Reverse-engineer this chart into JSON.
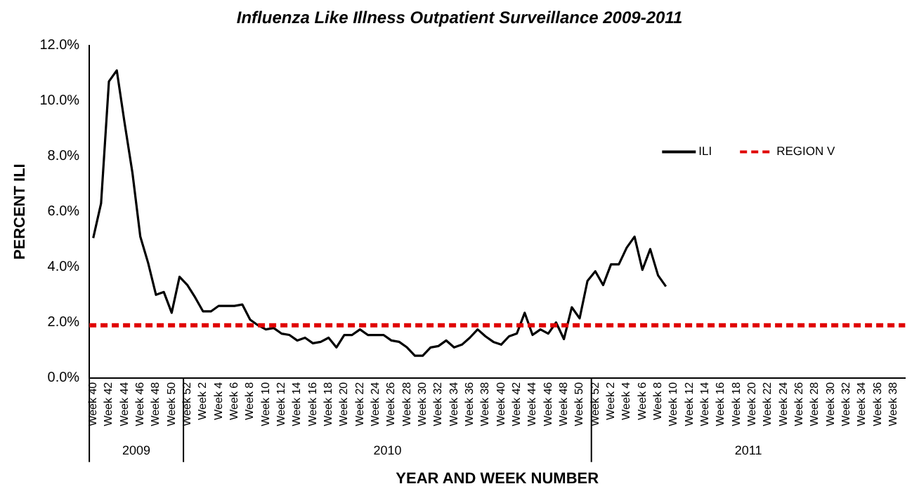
{
  "chart_data": {
    "type": "line",
    "title": "Influenza Like Illness Outpatient Surveillance 2009-2011",
    "xlabel": "YEAR AND WEEK NUMBER",
    "ylabel": "PERCENT ILI",
    "categories": [
      "Week 40",
      null,
      "Week 42",
      null,
      "Week 44",
      null,
      "Week 46",
      null,
      "Week 48",
      null,
      "Week 50",
      null,
      "Week 52",
      null,
      "Week 2",
      null,
      "Week 4",
      null,
      "Week 6",
      null,
      "Week 8",
      null,
      "Week 10",
      null,
      "Week 12",
      null,
      "Week 14",
      null,
      "Week 16",
      null,
      "Week 18",
      null,
      "Week 20",
      null,
      "Week 22",
      null,
      "Week 24",
      null,
      "Week 26",
      null,
      "Week 28",
      null,
      "Week 30",
      null,
      "Week 32",
      null,
      "Week 34",
      null,
      "Week 36",
      null,
      "Week 38",
      null,
      "Week 40",
      null,
      "Week 42",
      null,
      "Week 44",
      null,
      "Week 46",
      null,
      "Week 48",
      null,
      "Week 50",
      null,
      "Week 52",
      null,
      "Week 2",
      null,
      "Week 4",
      null,
      "Week 6",
      null,
      "Week 8",
      null,
      "Week 10",
      null,
      "Week 12",
      null,
      "Week 14",
      null,
      "Week 16",
      null,
      "Week 18",
      null,
      "Week 20",
      null,
      "Week 22",
      null,
      "Week 24",
      null,
      "Week 26",
      null,
      "Week 28",
      null,
      "Week 30",
      null,
      "Week 32",
      null,
      "Week 34",
      null,
      "Week 36",
      null,
      "Week 38",
      null
    ],
    "series": [
      {
        "name": "ILI",
        "color": "#000000",
        "values": [
          5.05,
          6.3,
          10.7,
          11.1,
          9.2,
          7.4,
          5.1,
          4.15,
          3.0,
          3.1,
          2.35,
          3.65,
          3.35,
          2.9,
          2.4,
          2.4,
          2.6,
          2.6,
          2.6,
          2.65,
          2.1,
          1.9,
          1.75,
          1.8,
          1.6,
          1.55,
          1.35,
          1.45,
          1.25,
          1.3,
          1.45,
          1.1,
          1.55,
          1.55,
          1.75,
          1.55,
          1.55,
          1.55,
          1.35,
          1.3,
          1.1,
          0.8,
          0.8,
          1.1,
          1.15,
          1.35,
          1.1,
          1.2,
          1.45,
          1.75,
          1.5,
          1.3,
          1.2,
          1.5,
          1.6,
          2.35,
          1.55,
          1.75,
          1.6,
          2.0,
          1.4,
          2.55,
          2.15,
          3.5,
          3.85,
          3.35,
          4.1,
          4.1,
          4.7,
          5.1,
          3.9,
          4.65,
          3.7,
          3.3,
          null,
          null,
          null,
          null,
          null,
          null,
          null,
          null,
          null,
          null,
          null,
          null,
          null,
          null,
          null,
          null,
          null,
          null,
          null,
          null,
          null,
          null,
          null,
          null,
          null,
          null,
          null,
          null,
          null,
          null
        ]
      }
    ],
    "ylim": [
      0,
      12
    ],
    "yticks": [
      {
        "value": 0,
        "label": "0.0%"
      },
      {
        "value": 2,
        "label": "2.0%"
      },
      {
        "value": 4,
        "label": "4.0%"
      },
      {
        "value": 6,
        "label": "6.0%"
      },
      {
        "value": 8,
        "label": "8.0%"
      },
      {
        "value": 10,
        "label": "10.0%"
      },
      {
        "value": 12,
        "label": "12.0%"
      }
    ],
    "ref_lines": [
      {
        "axis": "y",
        "value": 1.9,
        "label": "REGION V",
        "color": "#e00000",
        "line_style": "dashed"
      }
    ],
    "annotations": [
      "2009",
      "2010",
      "2011"
    ],
    "grid": false,
    "legend": "right",
    "marker": "none",
    "line_style": "solid"
  }
}
